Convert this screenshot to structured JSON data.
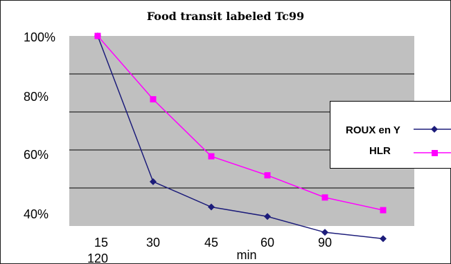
{
  "chart_data": {
    "type": "line",
    "title": "Food transit labeled Tc99",
    "xlabel": "min",
    "x_tick_labels": [
      "15",
      "30",
      "45",
      "60",
      "90",
      "120"
    ],
    "y_tick_labels": [
      "100%",
      "80%",
      "60%",
      "40%"
    ],
    "ylim": [
      40,
      100
    ],
    "grid": true,
    "legend_position": "right",
    "series": [
      {
        "name": "ROUX en Y",
        "color": "#1c1c7a",
        "marker": "diamond",
        "values": [
          100,
          54,
          46,
          43,
          38,
          36
        ]
      },
      {
        "name": "HLR",
        "color": "#ff00ff",
        "marker": "square",
        "values": [
          100,
          80,
          62,
          56,
          49,
          45
        ]
      }
    ]
  }
}
